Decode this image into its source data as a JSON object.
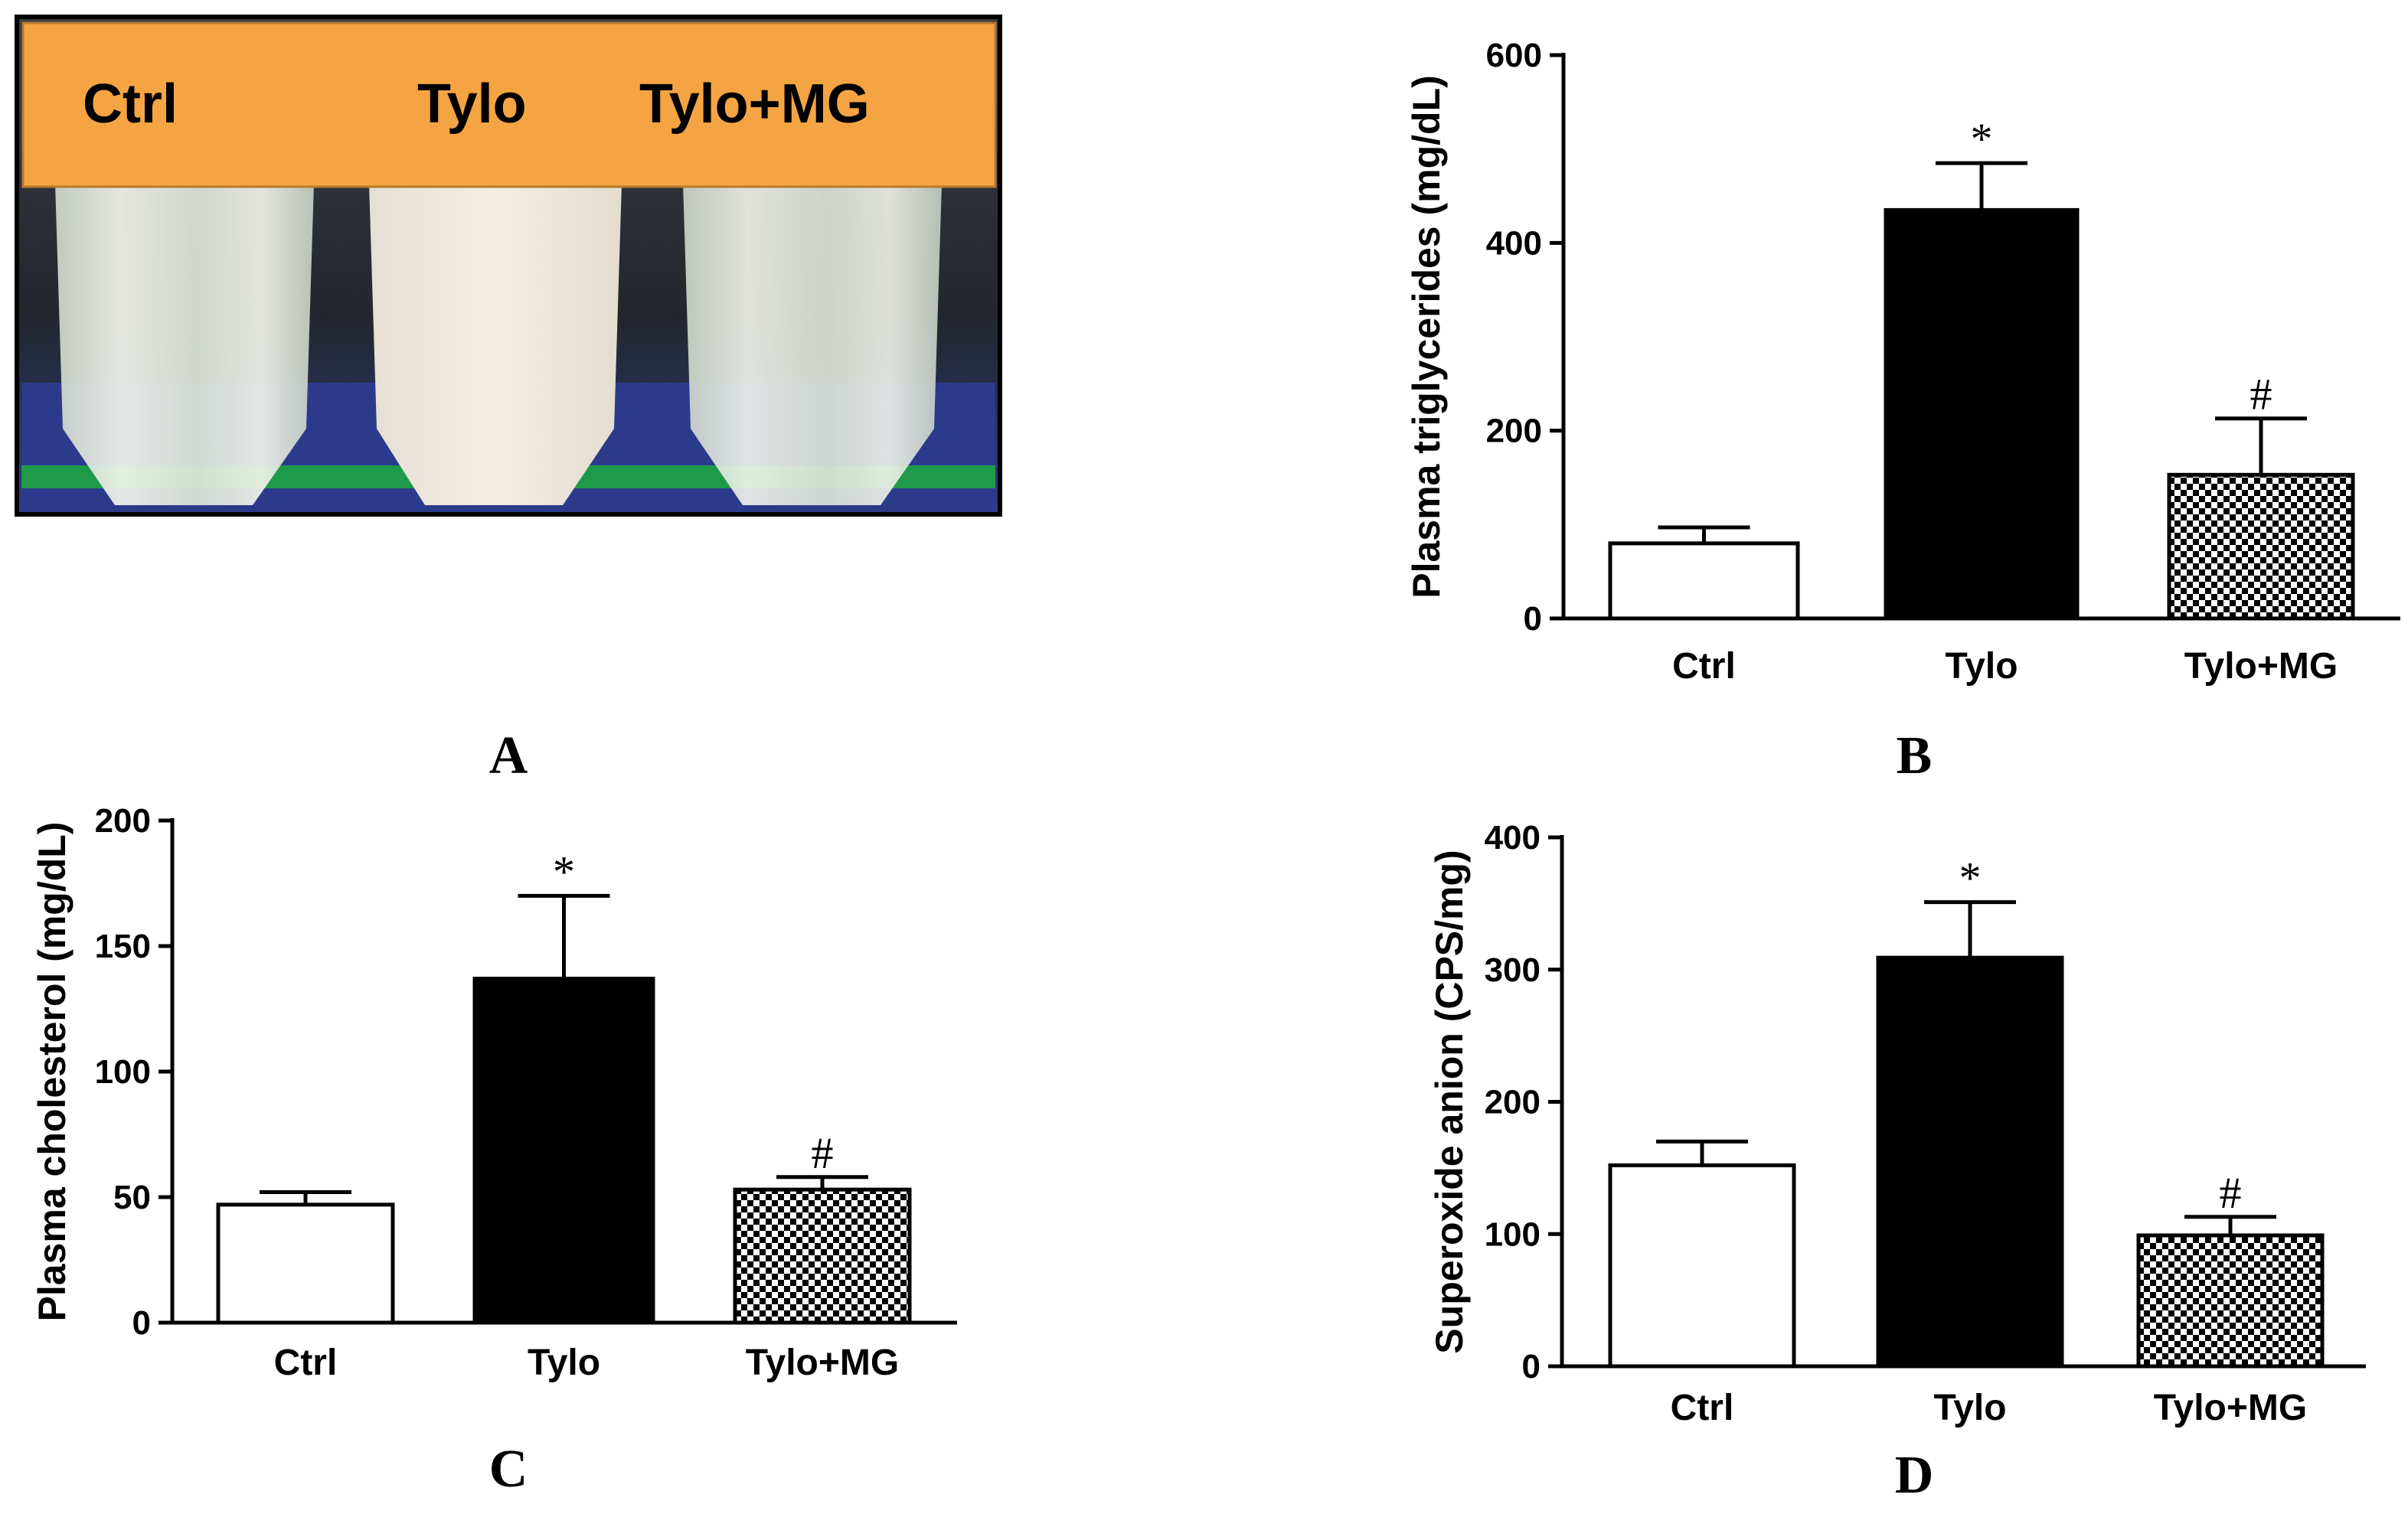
{
  "figure": {
    "photo_panel": {
      "letter": "A",
      "tube_labels": [
        "Ctrl",
        "Tylo",
        "Tylo+MG"
      ],
      "colors": {
        "banner": "#f5a443",
        "background": "#1a1a22",
        "tray": "#2c3a8c",
        "tray_green": "#1f9a4a"
      }
    },
    "colors": {
      "bar_border": "#000000",
      "bar_ctrl": "#ffffff",
      "bar_tylo": "#000000",
      "checker": "#000000"
    }
  },
  "chart_data": [
    {
      "panel": "B",
      "type": "bar",
      "title": "",
      "categories": [
        "Ctrl",
        "Tylo",
        "Tylo+MG"
      ],
      "values": [
        80,
        435,
        153
      ],
      "errors": [
        17,
        50,
        60
      ],
      "significance": [
        "",
        "*",
        "#"
      ],
      "ylabel": "Plasma triglycerides (mg/dL)",
      "ylim": [
        0,
        600
      ],
      "yticks": [
        0,
        200,
        400,
        600
      ],
      "ytick_labels": [
        "0",
        "200",
        "400",
        "600"
      ],
      "fills": [
        "white",
        "black",
        "checker"
      ]
    },
    {
      "panel": "C",
      "type": "bar",
      "title": "",
      "categories": [
        "Ctrl",
        "Tylo",
        "Tylo+MG"
      ],
      "values": [
        47,
        137,
        53
      ],
      "errors": [
        5,
        33,
        5
      ],
      "significance": [
        "",
        "*",
        "#"
      ],
      "ylabel": "Plasma cholesterol (mg/dL)",
      "ylim": [
        0,
        200
      ],
      "yticks": [
        0,
        50,
        100,
        150,
        200
      ],
      "ytick_labels": [
        "0",
        "50",
        "100",
        "150",
        "200"
      ],
      "fills": [
        "white",
        "black",
        "checker"
      ]
    },
    {
      "panel": "D",
      "type": "bar",
      "title": "",
      "categories": [
        "Ctrl",
        "Tylo",
        "Tylo+MG"
      ],
      "values": [
        152,
        309,
        99
      ],
      "errors": [
        18,
        42,
        14
      ],
      "significance": [
        "",
        "*",
        "#"
      ],
      "ylabel": "Superoxide anion (CPS/mg)",
      "ylim": [
        0,
        400
      ],
      "yticks": [
        0,
        100,
        200,
        300,
        400
      ],
      "ytick_labels": [
        "0",
        "100",
        "200",
        "300",
        "400"
      ],
      "fills": [
        "white",
        "black",
        "checker"
      ]
    }
  ]
}
